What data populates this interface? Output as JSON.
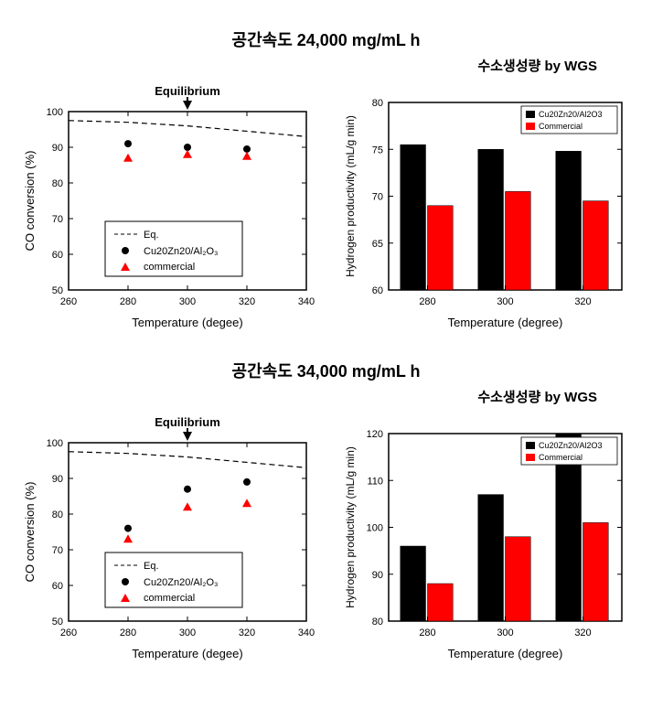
{
  "section1": {
    "title": "공간속도 24,000 mg/mL h",
    "subtitle": "수소생성량 by WGS",
    "scatter": {
      "type": "scatter",
      "eq_label": "Equilibrium",
      "xlabel": "Temperature (degee)",
      "ylabel": "CO conversion (%)",
      "xlim": [
        260,
        340
      ],
      "ylim": [
        50,
        100
      ],
      "xticks": [
        260,
        280,
        300,
        320,
        340
      ],
      "yticks": [
        50,
        60,
        70,
        80,
        90,
        100
      ],
      "eq_line": [
        [
          260,
          97.5
        ],
        [
          280,
          97
        ],
        [
          300,
          96
        ],
        [
          320,
          94.5
        ],
        [
          340,
          93
        ]
      ],
      "series": [
        {
          "name": "Cu20Zn20/Al2O3",
          "label": "Cu20Zn20/Al₂O₃",
          "marker": "circle",
          "color": "#000000",
          "points": [
            [
              280,
              91
            ],
            [
              300,
              90
            ],
            [
              320,
              89.5
            ]
          ]
        },
        {
          "name": "commercial",
          "label": "commercial",
          "marker": "triangle",
          "color": "#ff0000",
          "points": [
            [
              280,
              87
            ],
            [
              300,
              88
            ],
            [
              320,
              87.5
            ]
          ]
        }
      ],
      "legend_items": [
        "Eq.",
        "Cu20Zn20/Al₂O₃",
        "commercial"
      ],
      "axis_color": "#000000",
      "bg": "#ffffff"
    },
    "bar": {
      "type": "bar",
      "xlabel": "Temperature (degree)",
      "ylabel": "Hydrogen productivity (mL/g min)",
      "categories": [
        "280",
        "300",
        "320"
      ],
      "ylim": [
        60,
        80
      ],
      "yticks": [
        60,
        65,
        70,
        75,
        80
      ],
      "series": [
        {
          "name": "Cu20Zn20/Al2O3",
          "color": "#000000",
          "values": [
            75.5,
            75,
            74.8
          ]
        },
        {
          "name": "Commercial",
          "color": "#ff0000",
          "values": [
            69,
            70.5,
            69.5
          ]
        }
      ],
      "bar_width": 0.35,
      "axis_color": "#000000",
      "bg": "#ffffff"
    }
  },
  "section2": {
    "title": "공간속도 34,000 mg/mL h",
    "subtitle": "수소생성량 by WGS",
    "scatter": {
      "type": "scatter",
      "eq_label": "Equilibrium",
      "xlabel": "Temperature (degee)",
      "ylabel": "CO conversion (%)",
      "xlim": [
        260,
        340
      ],
      "ylim": [
        50,
        100
      ],
      "xticks": [
        260,
        280,
        300,
        320,
        340
      ],
      "yticks": [
        50,
        60,
        70,
        80,
        90,
        100
      ],
      "eq_line": [
        [
          260,
          97.5
        ],
        [
          280,
          97
        ],
        [
          300,
          96
        ],
        [
          320,
          94.5
        ],
        [
          340,
          93
        ]
      ],
      "series": [
        {
          "name": "Cu20Zn20/Al2O3",
          "label": "Cu20Zn20/Al₂O₃",
          "marker": "circle",
          "color": "#000000",
          "points": [
            [
              280,
              76
            ],
            [
              300,
              87
            ],
            [
              320,
              89
            ]
          ]
        },
        {
          "name": "commercial",
          "label": "commercial",
          "marker": "triangle",
          "color": "#ff0000",
          "points": [
            [
              280,
              73
            ],
            [
              300,
              82
            ],
            [
              320,
              83
            ]
          ]
        }
      ],
      "legend_items": [
        "Eq.",
        "Cu20Zn20/Al₂O₃",
        "commercial"
      ],
      "axis_color": "#000000",
      "bg": "#ffffff"
    },
    "bar": {
      "type": "bar",
      "xlabel": "Temperature (degree)",
      "ylabel": "Hydrogen productivity (mL/g min)",
      "categories": [
        "280",
        "300",
        "320"
      ],
      "ylim": [
        80,
        120
      ],
      "yticks": [
        80,
        90,
        100,
        110,
        120
      ],
      "series": [
        {
          "name": "Cu20Zn20/Al2O3",
          "color": "#000000",
          "values": [
            96,
            107,
            120
          ]
        },
        {
          "name": "Commercial",
          "color": "#ff0000",
          "values": [
            88,
            98,
            101
          ]
        }
      ],
      "bar_width": 0.35,
      "axis_color": "#000000",
      "bg": "#ffffff"
    }
  }
}
